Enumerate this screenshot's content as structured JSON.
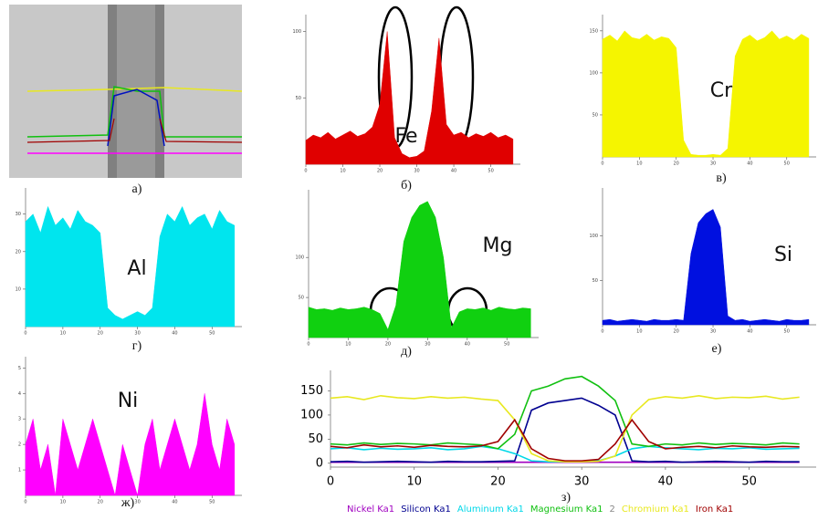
{
  "chart_data": [
    {
      "type": "image",
      "label": "а)"
    },
    {
      "type": "area",
      "label": "б)",
      "element": "Fe",
      "color": "#e00000",
      "x": [
        0,
        2,
        4,
        6,
        8,
        10,
        12,
        14,
        16,
        18,
        20,
        22,
        24,
        26,
        28,
        30,
        32,
        34,
        36,
        38,
        40,
        42,
        44,
        46,
        48,
        50,
        52,
        54,
        56
      ],
      "values": [
        18,
        22,
        20,
        24,
        19,
        22,
        25,
        21,
        23,
        28,
        45,
        100,
        20,
        8,
        5,
        6,
        10,
        40,
        95,
        30,
        22,
        24,
        20,
        23,
        21,
        24,
        20,
        22,
        19
      ],
      "xlim": [
        0,
        58
      ],
      "ylim": [
        0,
        110
      ],
      "xticks": [
        0,
        10,
        20,
        30,
        40,
        50
      ],
      "yticks": [
        50,
        100
      ]
    },
    {
      "type": "area",
      "label": "в)",
      "element": "Cr",
      "color": "#f5f500",
      "x": [
        0,
        2,
        4,
        6,
        8,
        10,
        12,
        14,
        16,
        18,
        20,
        22,
        24,
        26,
        28,
        30,
        32,
        34,
        36,
        38,
        40,
        42,
        44,
        46,
        48,
        50,
        52,
        54,
        56
      ],
      "values": [
        140,
        145,
        138,
        150,
        142,
        140,
        146,
        139,
        143,
        141,
        130,
        20,
        3,
        2,
        2,
        3,
        2,
        10,
        120,
        140,
        145,
        138,
        142,
        150,
        140,
        144,
        139,
        146,
        141
      ],
      "xlim": [
        0,
        58
      ],
      "ylim": [
        0,
        165
      ],
      "xticks": [
        0,
        10,
        20,
        30,
        40,
        50
      ],
      "yticks": [
        50,
        100,
        150
      ]
    },
    {
      "type": "area",
      "label": "г)",
      "element": "Al",
      "color": "#00e5ee",
      "x": [
        0,
        2,
        4,
        6,
        8,
        10,
        12,
        14,
        16,
        18,
        20,
        22,
        24,
        26,
        28,
        30,
        32,
        34,
        36,
        38,
        40,
        42,
        44,
        46,
        48,
        50,
        52,
        54,
        56
      ],
      "values": [
        28,
        30,
        25,
        32,
        27,
        29,
        26,
        31,
        28,
        27,
        25,
        5,
        3,
        2,
        3,
        4,
        3,
        5,
        24,
        30,
        28,
        32,
        27,
        29,
        30,
        26,
        31,
        28,
        27
      ],
      "xlim": [
        0,
        58
      ],
      "ylim": [
        0,
        36
      ],
      "xticks": [
        0,
        10,
        20,
        30,
        40,
        50
      ],
      "yticks": [
        10,
        20,
        30
      ]
    },
    {
      "type": "area",
      "label": "д)",
      "element": "Mg",
      "color": "#10d010",
      "x": [
        0,
        2,
        4,
        6,
        8,
        10,
        12,
        14,
        16,
        18,
        20,
        22,
        24,
        26,
        28,
        30,
        32,
        34,
        36,
        38,
        40,
        42,
        44,
        46,
        48,
        50,
        52,
        54,
        56
      ],
      "values": [
        38,
        35,
        36,
        34,
        37,
        35,
        36,
        38,
        35,
        30,
        10,
        40,
        120,
        150,
        165,
        170,
        150,
        100,
        12,
        32,
        36,
        35,
        37,
        34,
        38,
        36,
        35,
        37,
        36
      ],
      "xlim": [
        0,
        58
      ],
      "ylim": [
        0,
        180
      ],
      "xticks": [
        0,
        10,
        20,
        30,
        40,
        50
      ],
      "yticks": [
        50,
        100
      ]
    },
    {
      "type": "area",
      "label": "е)",
      "element": "Si",
      "color": "#0010e0",
      "x": [
        0,
        2,
        4,
        6,
        8,
        10,
        12,
        14,
        16,
        18,
        20,
        22,
        24,
        26,
        28,
        30,
        32,
        34,
        36,
        38,
        40,
        42,
        44,
        46,
        48,
        50,
        52,
        54,
        56
      ],
      "values": [
        5,
        6,
        4,
        5,
        6,
        5,
        4,
        6,
        5,
        5,
        6,
        5,
        80,
        115,
        125,
        130,
        110,
        10,
        5,
        6,
        4,
        5,
        6,
        5,
        4,
        6,
        5,
        5,
        6
      ],
      "xlim": [
        0,
        58
      ],
      "ylim": [
        0,
        150
      ],
      "xticks": [
        0,
        10,
        20,
        30,
        40,
        50
      ],
      "yticks": [
        50,
        100
      ]
    },
    {
      "type": "area",
      "label": "ж)",
      "element": "Ni",
      "color": "#ff00ff",
      "x": [
        0,
        2,
        4,
        6,
        8,
        10,
        12,
        14,
        16,
        18,
        20,
        22,
        24,
        26,
        28,
        30,
        32,
        34,
        36,
        38,
        40,
        42,
        44,
        46,
        48,
        50,
        52,
        54,
        56
      ],
      "values": [
        2,
        3,
        1,
        2,
        0,
        3,
        2,
        1,
        2,
        3,
        2,
        1,
        0,
        2,
        1,
        0,
        2,
        3,
        1,
        2,
        3,
        2,
        1,
        2,
        4,
        2,
        1,
        3,
        2
      ],
      "xlim": [
        0,
        58
      ],
      "ylim": [
        0,
        5.3
      ],
      "xticks": [
        0,
        10,
        20,
        30,
        40,
        50
      ],
      "yticks": [
        1,
        2,
        3,
        4,
        5
      ]
    },
    {
      "type": "line",
      "label": "з)",
      "x": [
        0,
        2,
        4,
        6,
        8,
        10,
        12,
        14,
        16,
        18,
        20,
        22,
        24,
        26,
        28,
        30,
        32,
        34,
        36,
        38,
        40,
        42,
        44,
        46,
        48,
        50,
        52,
        54,
        56
      ],
      "series": [
        {
          "name": "Nickel Ka1",
          "color": "#a000c0",
          "values": [
            2,
            2,
            2,
            2,
            2,
            2,
            2,
            2,
            2,
            2,
            2,
            2,
            2,
            2,
            2,
            2,
            2,
            2,
            2,
            2,
            2,
            2,
            2,
            2,
            2,
            2,
            2,
            2,
            2
          ]
        },
        {
          "name": "Silicon Ka1",
          "color": "#000090",
          "values": [
            3,
            4,
            2,
            3,
            4,
            3,
            2,
            4,
            3,
            3,
            4,
            5,
            110,
            125,
            130,
            135,
            120,
            100,
            5,
            3,
            4,
            2,
            3,
            4,
            3,
            2,
            4,
            3,
            3
          ]
        },
        {
          "name": "Aluminum Ka1",
          "color": "#00d8e8",
          "values": [
            30,
            32,
            28,
            31,
            29,
            30,
            32,
            28,
            30,
            35,
            30,
            20,
            5,
            3,
            3,
            4,
            5,
            15,
            30,
            35,
            32,
            30,
            28,
            31,
            30,
            32,
            29,
            30,
            31
          ]
        },
        {
          "name": "Magnesium Ka1",
          "color": "#10c010",
          "values": [
            40,
            38,
            42,
            39,
            41,
            40,
            38,
            42,
            40,
            38,
            30,
            60,
            150,
            160,
            175,
            180,
            160,
            130,
            40,
            35,
            40,
            38,
            42,
            39,
            41,
            40,
            38,
            42,
            40
          ]
        },
        {
          "name": "Chromium Ka1",
          "color": "#e8e820",
          "values": [
            135,
            138,
            132,
            140,
            136,
            134,
            138,
            135,
            137,
            133,
            130,
            90,
            20,
            5,
            3,
            3,
            4,
            15,
            100,
            132,
            138,
            135,
            140,
            134,
            137,
            136,
            139,
            133,
            137
          ]
        },
        {
          "name": "Iron Ka1",
          "color": "#a00000",
          "values": [
            35,
            32,
            38,
            34,
            36,
            33,
            37,
            35,
            34,
            36,
            45,
            90,
            30,
            10,
            5,
            5,
            8,
            40,
            90,
            45,
            30,
            33,
            35,
            32,
            36,
            34,
            33,
            35,
            34
          ]
        }
      ],
      "legend_note": "2",
      "xlim": [
        0,
        58
      ],
      "ylim": [
        -8,
        185
      ],
      "xticks": [
        0,
        10,
        20,
        30,
        40,
        50
      ],
      "yticks": [
        0,
        50,
        100,
        150
      ]
    }
  ]
}
